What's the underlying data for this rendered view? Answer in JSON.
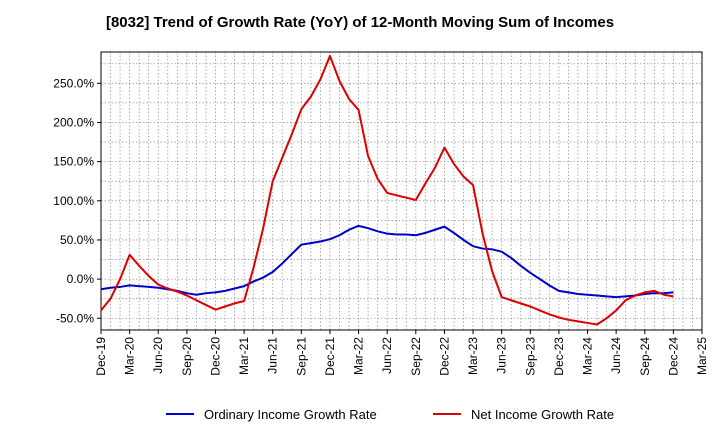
{
  "title": "[8032]  Trend of Growth Rate (YoY) of 12-Month Moving Sum of Incomes",
  "chart_data": {
    "type": "line",
    "title": "[8032]  Trend of Growth Rate (YoY) of 12-Month Moving Sum of Incomes",
    "xlabel": "",
    "ylabel": "",
    "ylim": [
      -65,
      290
    ],
    "yticks": [
      -50,
      0,
      50,
      100,
      150,
      200,
      250
    ],
    "ytick_labels": [
      "-50.0%",
      "0.0%",
      "50.0%",
      "100.0%",
      "150.0%",
      "200.0%",
      "250.0%"
    ],
    "xticks": [
      "Dec-19",
      "Mar-20",
      "Jun-20",
      "Sep-20",
      "Dec-20",
      "Mar-21",
      "Jun-21",
      "Sep-21",
      "Dec-21",
      "Mar-22",
      "Jun-22",
      "Sep-22",
      "Dec-22",
      "Mar-23",
      "Jun-23",
      "Sep-23",
      "Dec-23",
      "Mar-24",
      "Jun-24",
      "Sep-24",
      "Dec-24",
      "Mar-25"
    ],
    "x": [
      "Dec-19",
      "Jan-20",
      "Feb-20",
      "Mar-20",
      "Apr-20",
      "May-20",
      "Jun-20",
      "Jul-20",
      "Aug-20",
      "Sep-20",
      "Oct-20",
      "Nov-20",
      "Dec-20",
      "Jan-21",
      "Feb-21",
      "Mar-21",
      "Apr-21",
      "May-21",
      "Jun-21",
      "Jul-21",
      "Aug-21",
      "Sep-21",
      "Oct-21",
      "Nov-21",
      "Dec-21",
      "Jan-22",
      "Feb-22",
      "Mar-22",
      "Apr-22",
      "May-22",
      "Jun-22",
      "Jul-22",
      "Aug-22",
      "Sep-22",
      "Oct-22",
      "Nov-22",
      "Dec-22",
      "Jan-23",
      "Feb-23",
      "Mar-23",
      "Apr-23",
      "May-23",
      "Jun-23",
      "Jul-23",
      "Aug-23",
      "Sep-23",
      "Oct-23",
      "Nov-23",
      "Dec-23",
      "Jan-24",
      "Feb-24",
      "Mar-24",
      "Apr-24",
      "May-24",
      "Jun-24",
      "Jul-24",
      "Aug-24",
      "Sep-24",
      "Oct-24",
      "Nov-24",
      "Dec-24"
    ],
    "grid": true,
    "legend_position": "bottom",
    "series": [
      {
        "name": "Ordinary Income Growth Rate",
        "color": "#0000cc",
        "values": [
          -13,
          -11,
          -10,
          -8,
          -9,
          -10,
          -11,
          -13,
          -15,
          -18,
          -20,
          -18,
          -17,
          -15,
          -12,
          -9,
          -3,
          2,
          9,
          20,
          32,
          44,
          46,
          48,
          51,
          56,
          63,
          68,
          65,
          61,
          58,
          57,
          57,
          56,
          59,
          63,
          67,
          59,
          50,
          42,
          39,
          38,
          35,
          27,
          17,
          8,
          0,
          -8,
          -15,
          -17,
          -19,
          -20,
          -21,
          -22,
          -23,
          -22,
          -21,
          -19,
          -18,
          -18,
          -17
        ]
      },
      {
        "name": "Net Income Growth Rate",
        "color": "#dd0000",
        "values": [
          -40,
          -25,
          0,
          31,
          17,
          4,
          -7,
          -12,
          -16,
          -21,
          -27,
          -33,
          -39,
          -35,
          -31,
          -28,
          15,
          65,
          125,
          155,
          185,
          217,
          233,
          255,
          285,
          253,
          230,
          216,
          157,
          128,
          110,
          107,
          104,
          101,
          122,
          142,
          168,
          147,
          131,
          120,
          58,
          10,
          -23,
          -27,
          -31,
          -35,
          -40,
          -45,
          -49,
          -52,
          -54,
          -56,
          -58,
          -50,
          -40,
          -27,
          -21,
          -17,
          -15,
          -20,
          -22
        ]
      }
    ]
  },
  "legend": [
    {
      "label": "Ordinary Income Growth Rate",
      "color": "#0000cc"
    },
    {
      "label": "Net Income Growth Rate",
      "color": "#dd0000"
    }
  ]
}
